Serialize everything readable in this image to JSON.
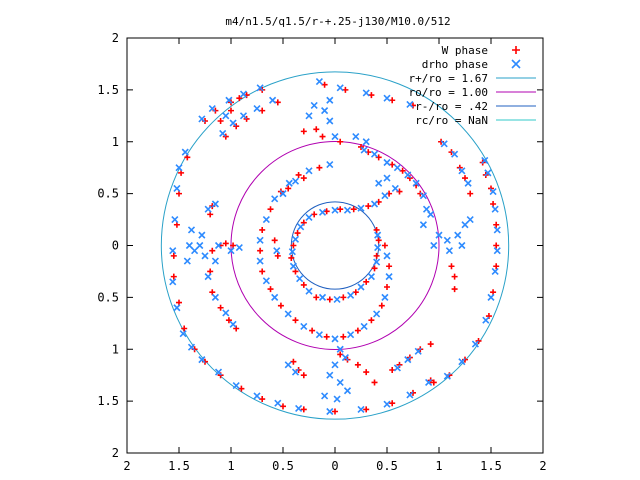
{
  "chart_data": {
    "type": "scatter",
    "title": "m4/n1.5/q1.5/r-+.25-j130/M10.0/512",
    "xlim": [
      -2,
      2
    ],
    "ylim": [
      -2,
      2
    ],
    "x_ticks": [
      -2,
      -1.5,
      -1,
      -0.5,
      0,
      0.5,
      1,
      1.5,
      2
    ],
    "y_ticks": [
      -2,
      -1.5,
      -1,
      -0.5,
      0,
      0.5,
      1,
      1.5,
      2
    ],
    "x_tick_labels": [
      "2",
      "1.5",
      "1",
      "0.5",
      "0",
      "0.5",
      "1",
      "1.5",
      "2"
    ],
    "y_tick_labels": [
      "2",
      "1.5",
      "1",
      "0.5",
      "0",
      "0.5",
      "1",
      "1.5",
      "2"
    ],
    "grid": false,
    "legend_position": "top-right",
    "legend": [
      {
        "label": "W phase",
        "marker": "plus",
        "color": "#ff0000"
      },
      {
        "label": "drho phase",
        "marker": "cross",
        "color": "#2e8bff"
      },
      {
        "label": "r+/ro = 1.67",
        "marker": "line",
        "color": "#2aa1c8"
      },
      {
        "label": "ro/ro = 1.00",
        "marker": "line",
        "color": "#b000b0"
      },
      {
        "label": "r-/ro = .42",
        "marker": "line",
        "color": "#2060c0"
      },
      {
        "label": "rc/ro = NaN",
        "marker": "line",
        "color": "#30c8c8"
      }
    ],
    "circles": [
      {
        "name": "r+/ro = 1.67",
        "radius": 1.67,
        "color": "#2aa1c8"
      },
      {
        "name": "ro/ro = 1.00",
        "radius": 1.0,
        "color": "#b000b0"
      },
      {
        "name": "r-/ro = .42",
        "radius": 0.42,
        "color": "#2060c0"
      }
    ],
    "series": [
      {
        "name": "W phase",
        "color": "#ff0000",
        "points": [
          [
            0.25,
            0.95
          ],
          [
            0.32,
            0.9
          ],
          [
            0.42,
            0.85
          ],
          [
            0.55,
            0.78
          ],
          [
            0.65,
            0.72
          ],
          [
            0.72,
            0.65
          ],
          [
            0.78,
            0.58
          ],
          [
            0.82,
            0.5
          ],
          [
            0.62,
            0.52
          ],
          [
            0.52,
            0.5
          ],
          [
            0.42,
            0.42
          ],
          [
            0.32,
            0.38
          ],
          [
            0.18,
            0.35
          ],
          [
            0.05,
            0.35
          ],
          [
            -0.08,
            0.33
          ],
          [
            -0.2,
            0.3
          ],
          [
            -0.3,
            0.22
          ],
          [
            -0.36,
            0.12
          ],
          [
            -0.4,
            0.0
          ],
          [
            -0.42,
            -0.12
          ],
          [
            -0.38,
            -0.25
          ],
          [
            -0.3,
            -0.38
          ],
          [
            -0.18,
            -0.5
          ],
          [
            -0.05,
            -0.52
          ],
          [
            0.08,
            -0.5
          ],
          [
            0.2,
            -0.45
          ],
          [
            0.3,
            -0.35
          ],
          [
            0.38,
            -0.22
          ],
          [
            0.4,
            -0.1
          ],
          [
            0.42,
            0.05
          ],
          [
            0.4,
            0.15
          ],
          [
            0.48,
            0.0
          ],
          [
            0.52,
            -0.2
          ],
          [
            0.5,
            -0.4
          ],
          [
            0.45,
            -0.58
          ],
          [
            0.35,
            -0.72
          ],
          [
            0.22,
            -0.82
          ],
          [
            0.08,
            -0.88
          ],
          [
            -0.08,
            -0.88
          ],
          [
            -0.22,
            -0.82
          ],
          [
            -0.38,
            -0.72
          ],
          [
            -0.52,
            -0.58
          ],
          [
            -0.62,
            -0.42
          ],
          [
            -0.7,
            -0.25
          ],
          [
            -0.72,
            -0.05
          ],
          [
            -0.7,
            0.15
          ],
          [
            -0.62,
            0.35
          ],
          [
            -0.52,
            0.52
          ],
          [
            -0.35,
            0.68
          ],
          [
            -0.15,
            0.75
          ],
          [
            -0.55,
            -0.1
          ],
          [
            -0.58,
            0.05
          ],
          [
            -0.45,
            0.55
          ],
          [
            -0.3,
            0.65
          ],
          [
            -1.18,
            -0.05
          ],
          [
            -1.05,
            0.02
          ],
          [
            -1.1,
            0.0
          ],
          [
            -0.98,
            0.0
          ],
          [
            -1.2,
            -0.25
          ],
          [
            -1.18,
            -0.45
          ],
          [
            -1.1,
            -0.6
          ],
          [
            -1.02,
            -0.72
          ],
          [
            -0.95,
            -0.8
          ],
          [
            -1.2,
            0.3
          ],
          [
            -1.18,
            0.38
          ],
          [
            -1.05,
            1.05
          ],
          [
            -0.95,
            1.15
          ],
          [
            -0.85,
            1.22
          ],
          [
            -0.7,
            1.3
          ],
          [
            -0.55,
            1.38
          ],
          [
            -1.1,
            1.2
          ],
          [
            -1.0,
            1.3
          ],
          [
            -1.42,
            0.85
          ],
          [
            -1.48,
            0.7
          ],
          [
            -1.5,
            0.5
          ],
          [
            -1.52,
            0.2
          ],
          [
            -1.55,
            -0.1
          ],
          [
            -1.55,
            -0.3
          ],
          [
            -1.5,
            -0.55
          ],
          [
            -1.45,
            -0.8
          ],
          [
            -1.35,
            -1.0
          ],
          [
            -1.25,
            -1.12
          ],
          [
            -1.1,
            -1.25
          ],
          [
            -0.9,
            -1.38
          ],
          [
            -0.7,
            -1.48
          ],
          [
            -0.5,
            -1.55
          ],
          [
            -0.3,
            -1.58
          ],
          [
            0.0,
            -1.6
          ],
          [
            0.3,
            -1.58
          ],
          [
            0.55,
            -1.52
          ],
          [
            0.75,
            -1.42
          ],
          [
            0.92,
            -1.3
          ],
          [
            -0.1,
            1.55
          ],
          [
            0.1,
            1.5
          ],
          [
            0.35,
            1.45
          ],
          [
            0.55,
            1.4
          ],
          [
            0.75,
            1.35
          ],
          [
            -0.3,
            1.1
          ],
          [
            -0.12,
            1.05
          ],
          [
            0.05,
            1.0
          ],
          [
            -0.18,
            1.12
          ],
          [
            1.02,
            1.0
          ],
          [
            1.12,
            0.9
          ],
          [
            1.2,
            0.75
          ],
          [
            1.25,
            0.65
          ],
          [
            1.3,
            0.5
          ],
          [
            1.42,
            0.8
          ],
          [
            1.45,
            0.68
          ],
          [
            1.5,
            0.55
          ],
          [
            1.52,
            0.4
          ],
          [
            1.55,
            0.2
          ],
          [
            1.55,
            0.0
          ],
          [
            1.55,
            -0.2
          ],
          [
            1.52,
            -0.45
          ],
          [
            1.48,
            -0.68
          ],
          [
            1.38,
            -0.92
          ],
          [
            1.25,
            -1.1
          ],
          [
            1.1,
            -1.25
          ],
          [
            0.95,
            -1.32
          ],
          [
            1.12,
            -0.2
          ],
          [
            1.15,
            -0.3
          ],
          [
            1.15,
            -0.42
          ],
          [
            0.55,
            -1.2
          ],
          [
            0.62,
            -1.15
          ],
          [
            0.72,
            -1.08
          ],
          [
            0.82,
            -1.0
          ],
          [
            0.92,
            -0.95
          ],
          [
            0.05,
            -1.05
          ],
          [
            0.12,
            -1.1
          ],
          [
            0.22,
            -1.15
          ],
          [
            0.3,
            -1.22
          ],
          [
            0.38,
            -1.32
          ],
          [
            -0.4,
            -1.12
          ],
          [
            -0.35,
            -1.2
          ],
          [
            -0.3,
            -1.25
          ],
          [
            -1.25,
            1.2
          ],
          [
            -1.15,
            1.3
          ],
          [
            -1.0,
            1.38
          ],
          [
            -0.85,
            1.45
          ],
          [
            -0.7,
            1.5
          ],
          [
            -0.92,
            1.42
          ]
        ]
      },
      {
        "name": "drho phase",
        "color": "#2e8bff",
        "points": [
          [
            0.28,
            0.92
          ],
          [
            0.38,
            0.88
          ],
          [
            0.5,
            0.8
          ],
          [
            0.6,
            0.75
          ],
          [
            0.7,
            0.68
          ],
          [
            0.78,
            0.6
          ],
          [
            0.85,
            0.48
          ],
          [
            0.88,
            0.35
          ],
          [
            0.58,
            0.55
          ],
          [
            0.48,
            0.48
          ],
          [
            0.38,
            0.4
          ],
          [
            0.25,
            0.36
          ],
          [
            0.12,
            0.34
          ],
          [
            0.0,
            0.34
          ],
          [
            -0.12,
            0.32
          ],
          [
            -0.25,
            0.27
          ],
          [
            -0.33,
            0.18
          ],
          [
            -0.38,
            0.06
          ],
          [
            -0.41,
            -0.06
          ],
          [
            -0.4,
            -0.2
          ],
          [
            -0.34,
            -0.32
          ],
          [
            -0.25,
            -0.44
          ],
          [
            -0.12,
            -0.5
          ],
          [
            0.02,
            -0.52
          ],
          [
            0.15,
            -0.48
          ],
          [
            0.25,
            -0.4
          ],
          [
            0.35,
            -0.3
          ],
          [
            0.4,
            -0.16
          ],
          [
            0.41,
            -0.02
          ],
          [
            0.41,
            0.1
          ],
          [
            0.5,
            -0.1
          ],
          [
            0.52,
            -0.3
          ],
          [
            0.48,
            -0.5
          ],
          [
            0.4,
            -0.66
          ],
          [
            0.28,
            -0.78
          ],
          [
            0.15,
            -0.86
          ],
          [
            0.0,
            -0.9
          ],
          [
            -0.15,
            -0.86
          ],
          [
            -0.3,
            -0.78
          ],
          [
            -0.45,
            -0.66
          ],
          [
            -0.58,
            -0.5
          ],
          [
            -0.66,
            -0.34
          ],
          [
            -0.72,
            -0.15
          ],
          [
            -0.72,
            0.05
          ],
          [
            -0.66,
            0.25
          ],
          [
            -0.58,
            0.45
          ],
          [
            -0.44,
            0.6
          ],
          [
            -0.25,
            0.72
          ],
          [
            -0.05,
            0.78
          ],
          [
            -0.56,
            -0.05
          ],
          [
            -0.5,
            0.5
          ],
          [
            -0.38,
            0.62
          ],
          [
            -1.25,
            -0.1
          ],
          [
            -1.12,
            0.0
          ],
          [
            -1.0,
            -0.05
          ],
          [
            -0.92,
            -0.02
          ],
          [
            -1.15,
            -0.15
          ],
          [
            -1.22,
            -0.3
          ],
          [
            -1.15,
            -0.5
          ],
          [
            -1.05,
            -0.65
          ],
          [
            -0.98,
            -0.76
          ],
          [
            -1.22,
            0.35
          ],
          [
            -1.15,
            0.4
          ],
          [
            -1.08,
            1.08
          ],
          [
            -0.98,
            1.18
          ],
          [
            -0.88,
            1.25
          ],
          [
            -0.75,
            1.32
          ],
          [
            -0.6,
            1.4
          ],
          [
            -1.05,
            1.25
          ],
          [
            -1.44,
            0.9
          ],
          [
            -1.5,
            0.75
          ],
          [
            -1.52,
            0.55
          ],
          [
            -1.54,
            0.25
          ],
          [
            -1.56,
            -0.05
          ],
          [
            -1.56,
            -0.35
          ],
          [
            -1.52,
            -0.6
          ],
          [
            -1.46,
            -0.85
          ],
          [
            -1.38,
            -0.98
          ],
          [
            -1.28,
            -1.1
          ],
          [
            -1.12,
            -1.22
          ],
          [
            -0.95,
            -1.35
          ],
          [
            -0.75,
            -1.45
          ],
          [
            -0.55,
            -1.52
          ],
          [
            -0.35,
            -1.57
          ],
          [
            -0.05,
            -1.6
          ],
          [
            0.25,
            -1.58
          ],
          [
            0.5,
            -1.53
          ],
          [
            0.72,
            -1.44
          ],
          [
            0.9,
            -1.32
          ],
          [
            -0.15,
            1.58
          ],
          [
            0.05,
            1.52
          ],
          [
            0.3,
            1.47
          ],
          [
            0.5,
            1.42
          ],
          [
            0.72,
            1.36
          ],
          [
            -0.05,
            1.2
          ],
          [
            -0.1,
            1.3
          ],
          [
            -0.05,
            1.4
          ],
          [
            -0.2,
            1.35
          ],
          [
            -0.25,
            1.25
          ],
          [
            0.0,
            1.05
          ],
          [
            1.05,
            0.98
          ],
          [
            1.15,
            0.88
          ],
          [
            1.22,
            0.72
          ],
          [
            1.28,
            0.6
          ],
          [
            1.44,
            0.82
          ],
          [
            1.47,
            0.7
          ],
          [
            1.52,
            0.52
          ],
          [
            1.54,
            0.35
          ],
          [
            1.56,
            0.15
          ],
          [
            1.56,
            -0.05
          ],
          [
            1.54,
            -0.25
          ],
          [
            1.5,
            -0.5
          ],
          [
            1.45,
            -0.72
          ],
          [
            1.35,
            -0.95
          ],
          [
            1.22,
            -1.12
          ],
          [
            1.08,
            -1.26
          ],
          [
            1.0,
            0.1
          ],
          [
            1.08,
            0.05
          ],
          [
            1.18,
            0.1
          ],
          [
            1.25,
            0.2
          ],
          [
            1.3,
            0.25
          ],
          [
            1.22,
            0.0
          ],
          [
            1.1,
            -0.05
          ],
          [
            0.95,
            0.0
          ],
          [
            0.85,
            0.2
          ],
          [
            0.92,
            0.3
          ],
          [
            0.05,
            -1.0
          ],
          [
            0.1,
            -1.08
          ],
          [
            0.0,
            -1.15
          ],
          [
            -0.05,
            -1.25
          ],
          [
            0.05,
            -1.32
          ],
          [
            0.12,
            -1.4
          ],
          [
            0.02,
            -1.48
          ],
          [
            -0.1,
            -1.45
          ],
          [
            0.6,
            -1.18
          ],
          [
            0.7,
            -1.1
          ],
          [
            0.8,
            -1.02
          ],
          [
            -0.45,
            -1.15
          ],
          [
            -0.38,
            -1.22
          ],
          [
            -1.28,
            1.22
          ],
          [
            -1.18,
            1.32
          ],
          [
            -1.02,
            1.4
          ],
          [
            -0.88,
            1.46
          ],
          [
            -0.72,
            1.52
          ],
          [
            -1.4,
            0.0
          ],
          [
            -1.35,
            -0.05
          ],
          [
            -1.3,
            0.0
          ],
          [
            -1.28,
            0.1
          ],
          [
            -1.38,
            0.15
          ],
          [
            -1.42,
            -0.15
          ],
          [
            0.42,
            0.6
          ],
          [
            0.5,
            0.65
          ],
          [
            0.2,
            1.05
          ],
          [
            0.3,
            1.0
          ]
        ]
      }
    ]
  }
}
